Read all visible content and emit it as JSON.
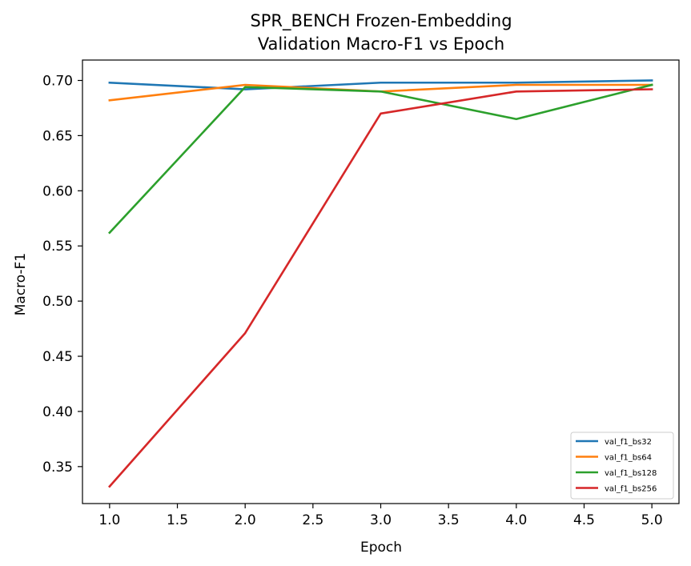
{
  "chart_data": {
    "type": "line",
    "title_line1": "SPR_BENCH Frozen-Embedding",
    "title_line2": "Validation Macro-F1 vs Epoch",
    "xlabel": "Epoch",
    "ylabel": "Macro-F1",
    "x": [
      1.0,
      2.0,
      3.0,
      4.0,
      5.0
    ],
    "xlim": [
      0.8,
      5.2
    ],
    "ylim": [
      0.3165,
      0.7185
    ],
    "xticks": [
      "1.0",
      "1.5",
      "2.0",
      "2.5",
      "3.0",
      "3.5",
      "4.0",
      "4.5",
      "5.0"
    ],
    "yticks": [
      "0.35",
      "0.40",
      "0.45",
      "0.50",
      "0.55",
      "0.60",
      "0.65",
      "0.70"
    ],
    "grid": false,
    "legend_position": "lower-right",
    "series": [
      {
        "name": "val_f1_bs32",
        "color": "#1f77b4",
        "values": [
          0.698,
          0.692,
          0.698,
          0.698,
          0.7
        ]
      },
      {
        "name": "val_f1_bs64",
        "color": "#ff7f0e",
        "values": [
          0.682,
          0.696,
          0.69,
          0.696,
          0.696
        ]
      },
      {
        "name": "val_f1_bs128",
        "color": "#2ca02c",
        "values": [
          0.562,
          0.694,
          0.69,
          0.665,
          0.696
        ]
      },
      {
        "name": "val_f1_bs256",
        "color": "#d62728",
        "values": [
          0.332,
          0.471,
          0.67,
          0.69,
          0.692
        ]
      }
    ]
  }
}
